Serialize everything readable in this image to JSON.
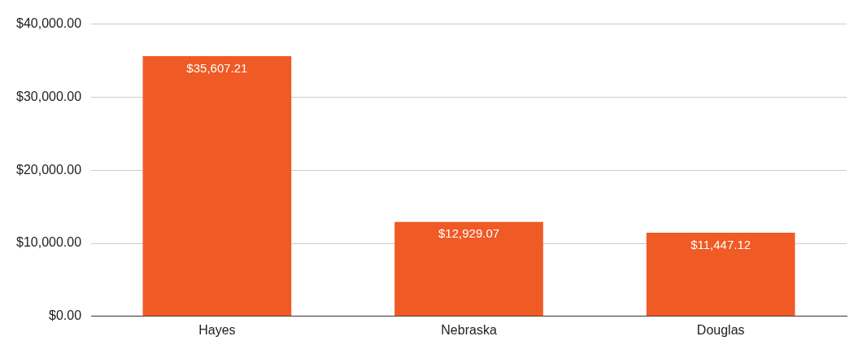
{
  "chart_data": {
    "type": "bar",
    "categories": [
      "Hayes",
      "Nebraska",
      "Douglas"
    ],
    "values": [
      35607.21,
      12929.07,
      11447.12
    ],
    "value_labels": [
      "$35,607.21",
      "$12,929.07",
      "$11,447.12"
    ],
    "color": "#f05a24",
    "ylim": [
      0,
      40000
    ],
    "yticks": [
      {
        "value": 0,
        "label": "$0.00"
      },
      {
        "value": 10000,
        "label": "$10,000.00"
      },
      {
        "value": 20000,
        "label": "$20,000.00"
      },
      {
        "value": 30000,
        "label": "$30,000.00"
      },
      {
        "value": 40000,
        "label": "$40,000.00"
      }
    ],
    "grid": "y",
    "legend": false
  }
}
